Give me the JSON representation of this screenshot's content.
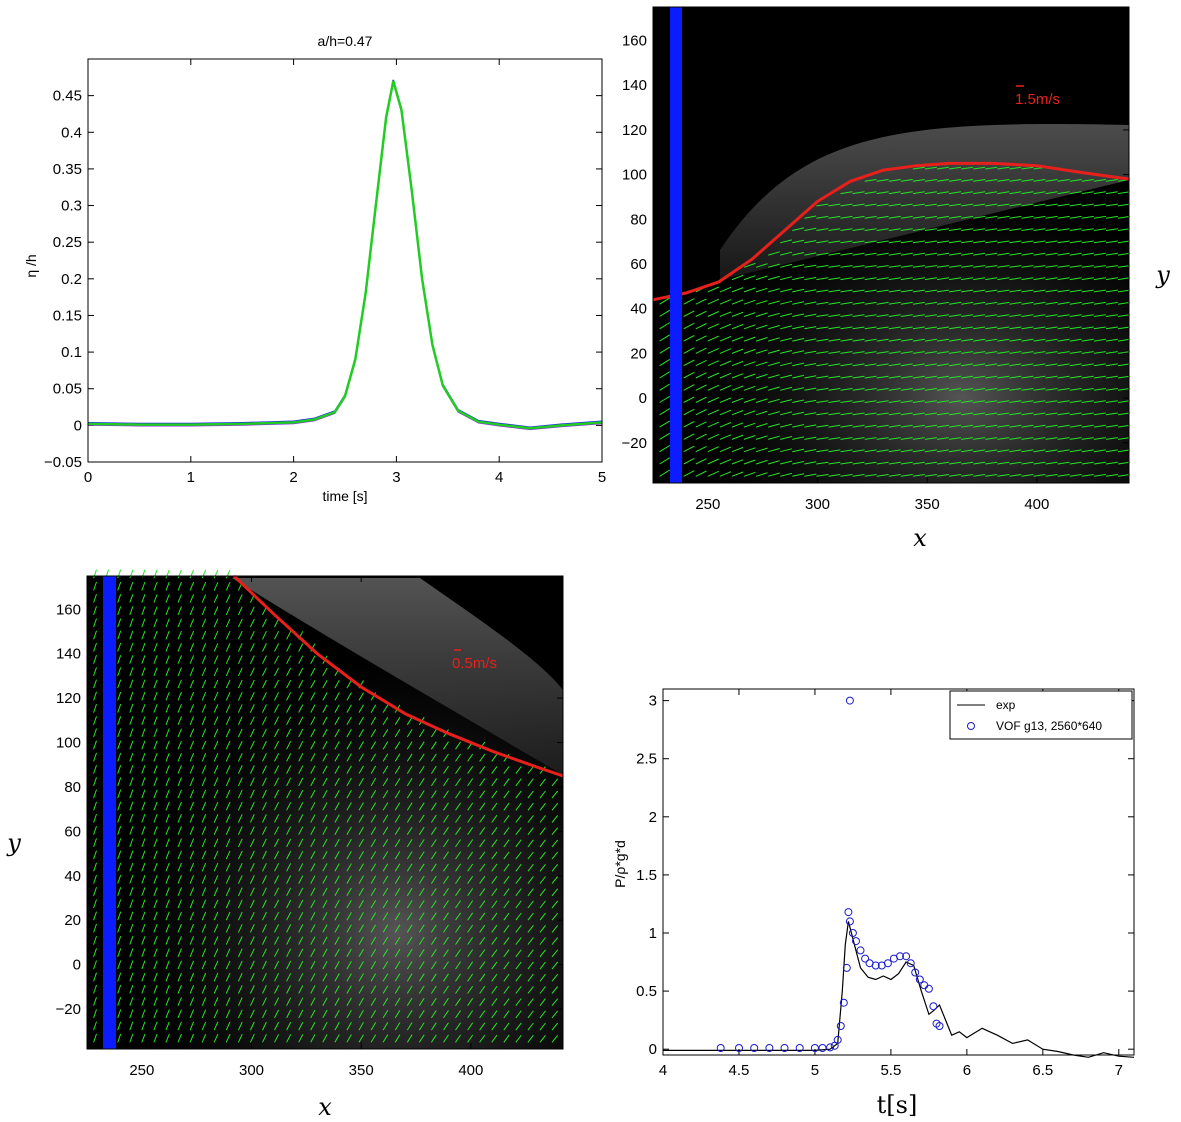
{
  "chart_data": [
    {
      "id": "surface-elevation",
      "type": "line",
      "title": "a/h=0.47",
      "xlabel": "time [s]",
      "ylabel": "η /h",
      "xlim": [
        0,
        5
      ],
      "ylim": [
        -0.05,
        0.5
      ],
      "xticks": [
        "0",
        "1",
        "2",
        "3",
        "4",
        "5"
      ],
      "yticks": [
        "−0.05",
        "0",
        "0.05",
        "0.1",
        "0.15",
        "0.2",
        "0.25",
        "0.3",
        "0.35",
        "0.4",
        "0.45"
      ],
      "grid": false,
      "series_colors": [
        "#1a1aff",
        "#8a2be2",
        "#22cc22"
      ],
      "x": [
        0,
        0.5,
        1,
        1.5,
        2,
        2.2,
        2.4,
        2.5,
        2.6,
        2.7,
        2.8,
        2.9,
        2.97,
        3.05,
        3.15,
        3.25,
        3.35,
        3.45,
        3.6,
        3.8,
        4,
        4.3,
        4.6,
        5
      ],
      "values": [
        0.002,
        0.001,
        0.001,
        0.002,
        0.004,
        0.008,
        0.018,
        0.04,
        0.09,
        0.18,
        0.3,
        0.42,
        0.47,
        0.43,
        0.32,
        0.2,
        0.11,
        0.055,
        0.02,
        0.005,
        0.001,
        -0.004,
        0.0,
        0.004
      ]
    },
    {
      "id": "piv-field-1",
      "type": "other",
      "xlabel": "x",
      "ylabel": "y",
      "xlim": [
        225,
        442
      ],
      "ylim": [
        -38,
        175
      ],
      "xticks": [
        "250",
        "300",
        "350",
        "400"
      ],
      "yticks": [
        "−20",
        "0",
        "20",
        "40",
        "60",
        "80",
        "100",
        "120",
        "140",
        "160"
      ],
      "scale_label": "1.5m/s",
      "surface_x": [
        225,
        240,
        255,
        270,
        285,
        300,
        315,
        330,
        345,
        360,
        380,
        400,
        420,
        442
      ],
      "surface_y": [
        44,
        47,
        52,
        62,
        75,
        88,
        97,
        102,
        104,
        105,
        105,
        104,
        101,
        98
      ],
      "colors": {
        "surface": "#e8201c",
        "vectors": "#27e427",
        "wall": "#0b1cff",
        "background": "#000000"
      }
    },
    {
      "id": "piv-field-2",
      "type": "other",
      "xlabel": "x",
      "ylabel": "y",
      "xlim": [
        225,
        442
      ],
      "ylim": [
        -38,
        175
      ],
      "xticks": [
        "250",
        "300",
        "350",
        "400"
      ],
      "yticks": [
        "−20",
        "0",
        "20",
        "40",
        "60",
        "80",
        "100",
        "120",
        "140",
        "160"
      ],
      "scale_label": "0.5m/s",
      "surface_x": [
        292,
        310,
        330,
        350,
        370,
        390,
        410,
        430,
        442
      ],
      "surface_y": [
        175,
        158,
        140,
        125,
        113,
        104,
        96,
        89,
        85
      ],
      "colors": {
        "surface": "#e8201c",
        "vectors": "#27e427",
        "wall": "#0b1cff",
        "background": "#000000"
      }
    },
    {
      "id": "pressure",
      "type": "line",
      "xlabel": "t[s]",
      "ylabel": "P/ρ*g*d",
      "xlim": [
        4,
        7.1
      ],
      "ylim": [
        -0.05,
        3.1
      ],
      "xticks": [
        "4",
        "4.5",
        "5",
        "5.5",
        "6",
        "6.5",
        "7"
      ],
      "yticks": [
        "0",
        "0.5",
        "1",
        "1.5",
        "2",
        "2.5",
        "3"
      ],
      "legend": {
        "position": "top-right",
        "entries": [
          "exp",
          "VOF g13, 2560*640"
        ]
      },
      "series": [
        {
          "name": "exp",
          "color": "#000000",
          "x": [
            4.0,
            4.5,
            5.0,
            5.1,
            5.15,
            5.18,
            5.2,
            5.22,
            5.25,
            5.3,
            5.35,
            5.4,
            5.45,
            5.5,
            5.55,
            5.6,
            5.65,
            5.7,
            5.75,
            5.78,
            5.82,
            5.86,
            5.9,
            5.95,
            6.0,
            6.1,
            6.2,
            6.3,
            6.4,
            6.5,
            6.6,
            6.7,
            6.8,
            6.9,
            7.0,
            7.1
          ],
          "values": [
            -0.01,
            -0.01,
            -0.01,
            0.0,
            0.05,
            0.5,
            0.9,
            1.1,
            0.95,
            0.7,
            0.62,
            0.6,
            0.63,
            0.6,
            0.65,
            0.75,
            0.72,
            0.5,
            0.3,
            0.33,
            0.38,
            0.25,
            0.12,
            0.15,
            0.1,
            0.18,
            0.12,
            0.05,
            0.08,
            0.0,
            -0.02,
            -0.05,
            -0.07,
            -0.03,
            -0.06,
            -0.07
          ]
        },
        {
          "name": "VOF g13, 2560*640",
          "color": "#1a1acc",
          "marker": "circle",
          "x": [
            4.38,
            4.5,
            4.6,
            4.7,
            4.8,
            4.9,
            5.0,
            5.05,
            5.1,
            5.13,
            5.15,
            5.17,
            5.19,
            5.21,
            5.22,
            5.23,
            5.25,
            5.27,
            5.3,
            5.33,
            5.36,
            5.4,
            5.44,
            5.48,
            5.52,
            5.56,
            5.6,
            5.63,
            5.66,
            5.69,
            5.72,
            5.75,
            5.78,
            5.8,
            5.82
          ],
          "values": [
            0.01,
            0.01,
            0.01,
            0.01,
            0.01,
            0.01,
            0.01,
            0.01,
            0.015,
            0.03,
            0.08,
            0.2,
            0.4,
            0.7,
            1.18,
            1.1,
            1.0,
            0.93,
            0.85,
            0.78,
            0.74,
            0.72,
            0.72,
            0.74,
            0.78,
            0.8,
            0.8,
            0.74,
            0.66,
            0.6,
            0.55,
            0.52,
            0.37,
            0.22,
            0.2
          ]
        }
      ],
      "outliers": [
        {
          "x": 5.23,
          "y": 3.0
        }
      ]
    }
  ]
}
